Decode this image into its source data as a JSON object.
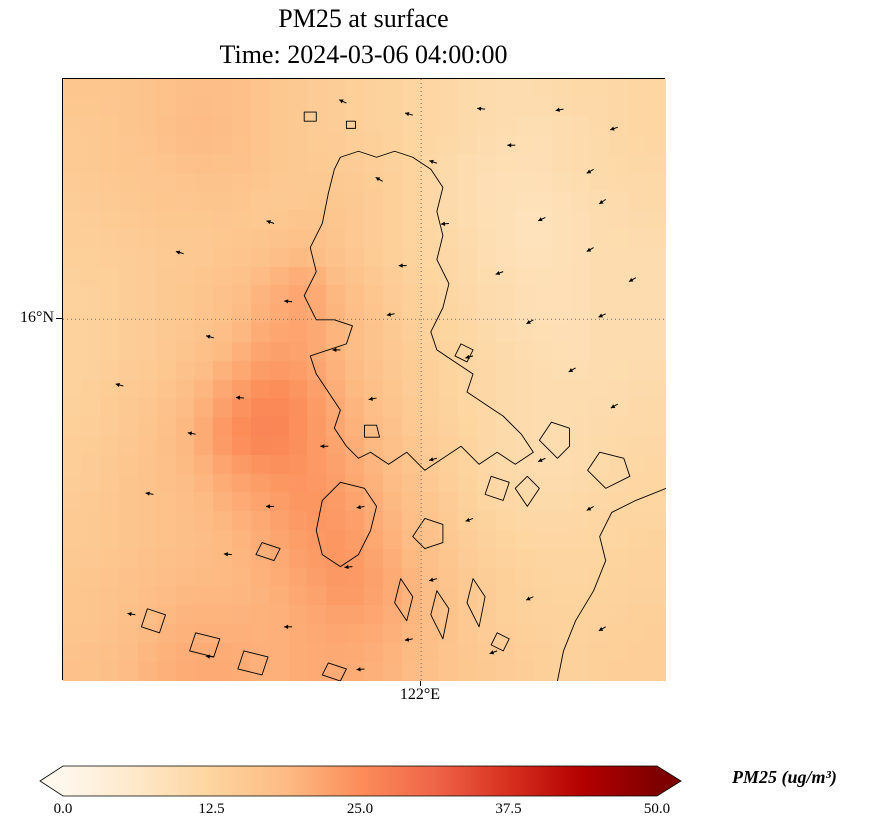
{
  "chart_data": {
    "type": "heatmap",
    "title": "PM25 at surface",
    "subtitle": "Time: 2024-03-06 04:00:00",
    "variable": "PM25",
    "units": "ug/m³",
    "time": "2024-03-06 04:00:00",
    "vmin": 0,
    "vmax": 50,
    "xticks": [
      {
        "label": "122°E",
        "position": 0.594
      }
    ],
    "yticks": [
      {
        "label": "16°N",
        "position": 0.399
      }
    ],
    "colorbar": {
      "label": "PM25 (ug/m³)",
      "ticks": [
        "0.0",
        "12.5",
        "25.0",
        "37.5",
        "50.0"
      ],
      "tick_values": [
        0,
        12.5,
        25,
        37.5,
        50
      ],
      "extend": "both",
      "orientation": "horizontal"
    },
    "colormap": {
      "name": "OrRd",
      "stops": [
        {
          "t": 0,
          "c": "#fff7ec"
        },
        {
          "t": 0.125,
          "c": "#fee8c8"
        },
        {
          "t": 0.25,
          "c": "#fdd49e"
        },
        {
          "t": 0.375,
          "c": "#fdbb84"
        },
        {
          "t": 0.5,
          "c": "#fc8d59"
        },
        {
          "t": 0.625,
          "c": "#ef6548"
        },
        {
          "t": 0.75,
          "c": "#d7301f"
        },
        {
          "t": 0.875,
          "c": "#b30000"
        },
        {
          "t": 1,
          "c": "#7f0000"
        }
      ]
    },
    "grid": {
      "description": "Approximate PM25 field (ug/m3), 16x16 cells, row 0 = north",
      "values": [
        [
          16,
          16,
          17,
          18,
          18,
          16,
          15,
          14,
          13,
          12,
          11,
          10,
          10,
          11,
          11,
          12
        ],
        [
          15,
          16,
          17,
          19,
          18,
          16,
          15,
          14,
          13,
          12,
          11,
          10,
          9,
          10,
          11,
          12
        ],
        [
          15,
          16,
          16,
          17,
          17,
          16,
          15,
          15,
          14,
          12,
          10,
          9,
          9,
          10,
          11,
          11
        ],
        [
          14,
          15,
          16,
          16,
          16,
          15,
          16,
          16,
          14,
          12,
          10,
          9,
          8,
          9,
          10,
          11
        ],
        [
          14,
          14,
          15,
          15,
          16,
          17,
          18,
          16,
          14,
          12,
          11,
          9,
          8,
          9,
          10,
          10
        ],
        [
          13,
          14,
          15,
          16,
          17,
          20,
          22,
          18,
          15,
          13,
          11,
          10,
          9,
          9,
          10,
          10
        ],
        [
          13,
          14,
          15,
          16,
          18,
          21,
          22,
          19,
          16,
          13,
          12,
          10,
          9,
          9,
          10,
          10
        ],
        [
          13,
          14,
          15,
          17,
          20,
          23,
          22,
          19,
          16,
          14,
          12,
          11,
          10,
          9,
          10,
          10
        ],
        [
          13,
          15,
          16,
          19,
          23,
          26,
          24,
          20,
          17,
          14,
          12,
          11,
          10,
          10,
          10,
          11
        ],
        [
          14,
          15,
          17,
          20,
          25,
          27,
          24,
          21,
          18,
          15,
          13,
          11,
          10,
          10,
          11,
          11
        ],
        [
          14,
          16,
          17,
          19,
          22,
          24,
          24,
          22,
          19,
          16,
          13,
          11,
          10,
          10,
          11,
          12
        ],
        [
          15,
          16,
          17,
          18,
          20,
          22,
          24,
          23,
          20,
          17,
          14,
          12,
          11,
          11,
          12,
          12
        ],
        [
          15,
          16,
          17,
          18,
          19,
          21,
          23,
          24,
          21,
          18,
          15,
          13,
          12,
          12,
          12,
          13
        ],
        [
          16,
          17,
          18,
          19,
          19,
          20,
          22,
          24,
          22,
          19,
          16,
          14,
          13,
          12,
          13,
          13
        ],
        [
          16,
          17,
          19,
          20,
          20,
          20,
          21,
          22,
          21,
          19,
          16,
          14,
          13,
          13,
          13,
          14
        ],
        [
          17,
          18,
          20,
          21,
          21,
          20,
          21,
          21,
          20,
          18,
          16,
          15,
          14,
          13,
          14,
          14
        ]
      ]
    },
    "arrows": [
      [
        47,
        4,
        205
      ],
      [
        58,
        6,
        195
      ],
      [
        70,
        5,
        185
      ],
      [
        83,
        5,
        170
      ],
      [
        92,
        8,
        160
      ],
      [
        75,
        11,
        180
      ],
      [
        88,
        15,
        150
      ],
      [
        62,
        14,
        200
      ],
      [
        53,
        17,
        210
      ],
      [
        90,
        20,
        145
      ],
      [
        80,
        23,
        155
      ],
      [
        64,
        24,
        175
      ],
      [
        35,
        24,
        200
      ],
      [
        20,
        29,
        195
      ],
      [
        88,
        28,
        150
      ],
      [
        57,
        31,
        180
      ],
      [
        73,
        32,
        160
      ],
      [
        95,
        33,
        150
      ],
      [
        38,
        37,
        185
      ],
      [
        55,
        39,
        170
      ],
      [
        78,
        40,
        150
      ],
      [
        90,
        39,
        155
      ],
      [
        25,
        43,
        195
      ],
      [
        46,
        45,
        180
      ],
      [
        68,
        46,
        165
      ],
      [
        85,
        48,
        150
      ],
      [
        10,
        51,
        195
      ],
      [
        30,
        53,
        185
      ],
      [
        52,
        53,
        170
      ],
      [
        92,
        54,
        150
      ],
      [
        22,
        59,
        190
      ],
      [
        44,
        61,
        180
      ],
      [
        62,
        63,
        165
      ],
      [
        80,
        63,
        155
      ],
      [
        15,
        69,
        190
      ],
      [
        35,
        71,
        180
      ],
      [
        50,
        71,
        170
      ],
      [
        68,
        73,
        160
      ],
      [
        88,
        71,
        150
      ],
      [
        28,
        79,
        185
      ],
      [
        48,
        81,
        175
      ],
      [
        62,
        83,
        165
      ],
      [
        78,
        86,
        155
      ],
      [
        12,
        89,
        190
      ],
      [
        38,
        91,
        180
      ],
      [
        58,
        93,
        170
      ],
      [
        72,
        95,
        160
      ],
      [
        90,
        91,
        150
      ],
      [
        25,
        96,
        185
      ],
      [
        50,
        98,
        175
      ]
    ],
    "coastlines": [
      "M46,13 L49,12 L52,13 L55,12 L58,13 L61,15 L63,18 L62,22 L63,26 L62,30 L64,34 L63,38 L61,42 L62,45 L65,47 L68,49 L67,52 L70,54 L73,56 L76,59 L78,62 L75,64 L72,62 L69,64 L66,61 L63,63 L60,65 L57,62 L54,64 L51,62 L49,63 L47,61 L45,58 L46,55 L44,52 L42,49 L41,46 L44,45 L47,44 L48,41 L45,40 L42,40 L40,36 L42,32 L41,28 L43,24 L44,19 L45,15 Z",
      "M50,57.5 L52,57.5 L52.5,59.5 L50,59.5 Z",
      "M46,67 L50,68 L52,71 L51,75 L49,79 L46,81 L43,79 L42,75 L43,70 Z",
      "M60,73 L63,74 L63,77 L60,78 L58,76 Z",
      "M81,57 L84,58 L84,61 L82,63 L79,60 Z",
      "M66,44 L68,45 L67,47 L65,46 Z",
      "M71,66 L74,67 L73,70 L70,69 Z",
      "M77,66 L79,68 L77,71 L75,68 Z",
      "M89,62 L93,63 L94,66 L90,68 L87,65 Z",
      "M100,68 L95,70 L91,72 L89,76 L90,80 L88,85 L85,90 L83,95 L82,100",
      "M56,83 L58,86 L57,90 L55,87 Z",
      "M62,85 L64,88 L63,93 L61,89 Z",
      "M68,83 L70,86 L69,91 L67,87 Z",
      "M72,92 L74,93 L73,95 L71,94 Z",
      "M33,77 L36,78 L35,80 L32,79 Z",
      "M40,5.5 L42,5.5 L42,7 L40,7 Z",
      "M47,7 L48.5,7 L48.5,8.2 L47,8.2 Z",
      "M14,88 L17,89 L16,92 L13,91 Z",
      "M22,92 L26,93 L25,96 L21,95 Z",
      "M30,95 L34,96 L33,99 L29,98 Z",
      "M44,97 L47,98 L46,100 L43,99 Z"
    ]
  }
}
